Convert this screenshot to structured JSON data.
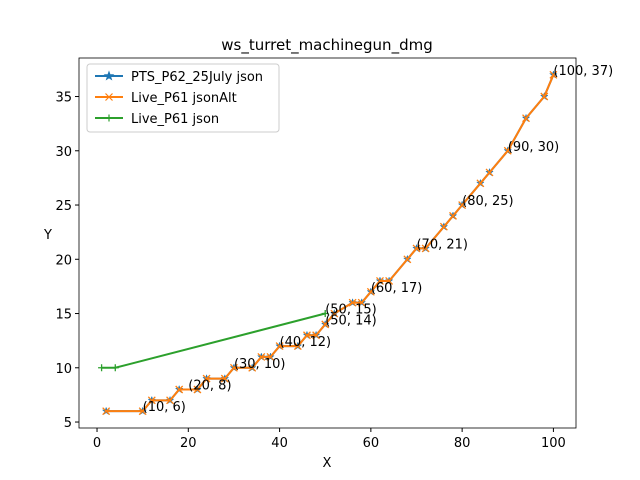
{
  "chart_data": {
    "type": "line",
    "title": "ws_turret_machinegun_dmg",
    "x_label": "X",
    "y_label": "Y",
    "xlim": [
      -3.95,
      104.95
    ],
    "ylim": [
      4.45,
      38.55
    ],
    "xticks": [
      0,
      20,
      40,
      60,
      80,
      100
    ],
    "yticks": [
      5,
      10,
      15,
      20,
      25,
      30,
      35
    ],
    "legend": "upper left",
    "series": [
      {
        "name": "PTS_P62_25July json",
        "color": "#1f77b4",
        "marker": "star",
        "x": [
          2,
          10,
          12,
          16,
          18,
          22,
          24,
          28,
          30,
          34,
          36,
          38,
          40,
          44,
          46,
          48,
          50,
          52,
          56,
          58,
          60,
          62,
          64,
          68,
          70,
          72,
          76,
          78,
          80,
          84,
          86,
          90,
          94,
          98,
          100
        ],
        "values": [
          6,
          6,
          7,
          7,
          8,
          8,
          9,
          9,
          10,
          10,
          11,
          11,
          12,
          12,
          13,
          13,
          14,
          15,
          16,
          16,
          17,
          18,
          18,
          20,
          21,
          21,
          23,
          24,
          25,
          27,
          28,
          30,
          33,
          35,
          37
        ]
      },
      {
        "name": "Live_P61 jsonAlt",
        "color": "#ff7f0e",
        "marker": "x",
        "x": [
          2,
          10,
          12,
          16,
          18,
          22,
          24,
          28,
          30,
          34,
          36,
          38,
          40,
          44,
          46,
          48,
          50,
          52,
          56,
          58,
          60,
          62,
          64,
          68,
          70,
          72,
          76,
          78,
          80,
          84,
          86,
          90,
          94,
          98,
          100
        ],
        "values": [
          6,
          6,
          7,
          7,
          8,
          8,
          9,
          9,
          10,
          10,
          11,
          11,
          12,
          12,
          13,
          13,
          14,
          15,
          16,
          16,
          17,
          18,
          18,
          20,
          21,
          21,
          23,
          24,
          25,
          27,
          28,
          30,
          33,
          35,
          37
        ]
      },
      {
        "name": "Live_P61 json",
        "color": "#2ca02c",
        "marker": "plus",
        "x": [
          1,
          4,
          50
        ],
        "values": [
          10,
          10,
          15
        ]
      }
    ],
    "annotations": [
      {
        "x": 10,
        "y": 6,
        "text": "(10, 6)"
      },
      {
        "x": 20,
        "y": 8,
        "text": "(20, 8)"
      },
      {
        "x": 30,
        "y": 10,
        "text": "(30, 10)"
      },
      {
        "x": 40,
        "y": 12,
        "text": "(40, 12)"
      },
      {
        "x": 50,
        "y": 14,
        "text": "(50, 14)"
      },
      {
        "x": 50,
        "y": 15,
        "text": "(50, 15)"
      },
      {
        "x": 60,
        "y": 17,
        "text": "(60, 17)"
      },
      {
        "x": 70,
        "y": 21,
        "text": "(70, 21)"
      },
      {
        "x": 80,
        "y": 25,
        "text": "(80, 25)"
      },
      {
        "x": 90,
        "y": 30,
        "text": "(90, 30)"
      },
      {
        "x": 100,
        "y": 37,
        "text": "(100, 37)"
      }
    ]
  }
}
